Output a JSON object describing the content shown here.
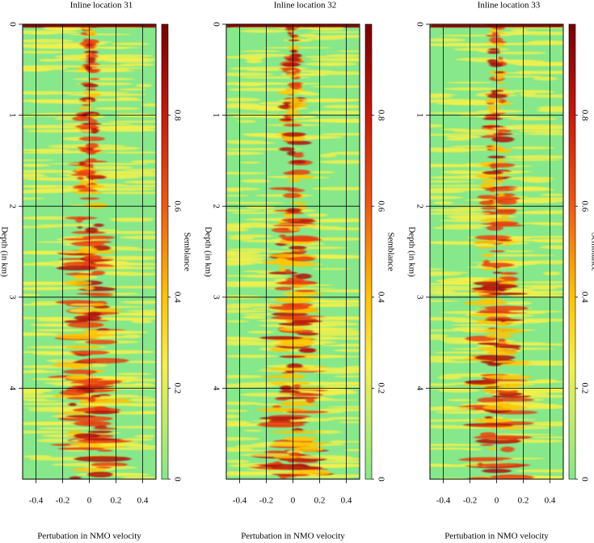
{
  "chart_data": [
    {
      "type": "heatmap",
      "title": "Inline location 31",
      "xlabel": "Pertubation in NMO velocity",
      "ylabel": "Depth (in km)",
      "colorbar_label": "Semblance",
      "xlim": [
        -0.5,
        0.5
      ],
      "xticks": [
        -0.4,
        -0.2,
        0,
        0.2,
        0.4
      ],
      "ylim": [
        0,
        5
      ],
      "yticks": [
        0,
        1,
        2,
        3,
        4
      ],
      "clim": [
        0,
        1
      ],
      "cticks": [
        0,
        0.2,
        0.4,
        0.6,
        0.8
      ],
      "grid": true
    },
    {
      "type": "heatmap",
      "title": "Inline location 32",
      "xlabel": "Pertubation in NMO velocity",
      "ylabel": "Depth (in km)",
      "colorbar_label": "Semblance",
      "xlim": [
        -0.5,
        0.5
      ],
      "xticks": [
        -0.4,
        -0.2,
        0,
        0.2,
        0.4
      ],
      "ylim": [
        0,
        5
      ],
      "yticks": [
        0,
        1,
        2,
        3,
        4
      ],
      "clim": [
        0,
        1
      ],
      "cticks": [
        0,
        0.2,
        0.4,
        0.6,
        0.8
      ],
      "grid": true
    },
    {
      "type": "heatmap",
      "title": "Inline location 33",
      "xlabel": "Pertubation in NMO velocity",
      "ylabel": "Depth (in km)",
      "colorbar_label": "Semblance",
      "xlim": [
        -0.5,
        0.5
      ],
      "xticks": [
        -0.4,
        -0.2,
        0,
        0.2,
        0.4
      ],
      "ylim": [
        0,
        5
      ],
      "yticks": [
        0,
        1,
        2,
        3,
        4
      ],
      "clim": [
        0,
        1
      ],
      "cticks": [
        0,
        0.2,
        0.4,
        0.6,
        0.8
      ],
      "grid": true
    }
  ]
}
